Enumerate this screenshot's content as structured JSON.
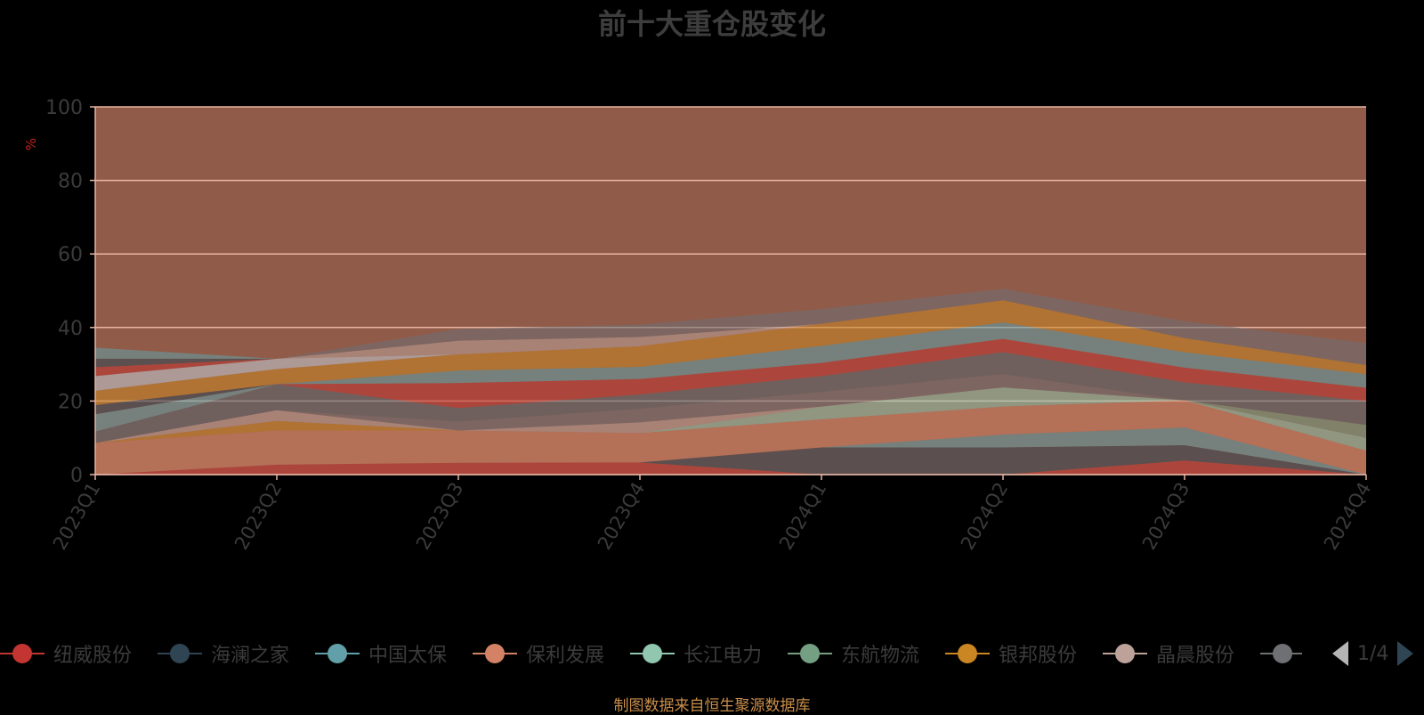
{
  "title": "前十大重仓股变化",
  "source_note": "制图数据来自恒生聚源数据库",
  "pager": {
    "text": "1/4"
  },
  "colors": {
    "plot_bg": "#905b49",
    "grid": "#e9b7a3",
    "axis": "#e6b6a4"
  },
  "chart_data": {
    "type": "area",
    "stacked": true,
    "title": "前十大重仓股变化",
    "ylabel": "%",
    "ylim": [
      0,
      100
    ],
    "yticks": [
      0,
      20,
      40,
      60,
      80,
      100
    ],
    "categories": [
      "2023Q1",
      "2023Q2",
      "2023Q3",
      "2023Q4",
      "2024Q1",
      "2024Q2",
      "2024Q3",
      "2024Q4"
    ],
    "grid": true,
    "legend_position": "bottom",
    "series": [
      {
        "name": "纽威股份",
        "color": "#c23531",
        "values": [
          0,
          2.7,
          3.2,
          3.3,
          0,
          0,
          3.8,
          0
        ]
      },
      {
        "name": "海澜之家",
        "color": "#2f4554",
        "values": [
          0,
          0,
          0,
          0,
          7.4,
          7.4,
          4.2,
          0
        ]
      },
      {
        "name": "中国太保",
        "color": "#61a0a8",
        "values": [
          0,
          0,
          0,
          0,
          0,
          3.5,
          4.8,
          0
        ]
      },
      {
        "name": "保利发展",
        "color": "#d48265",
        "values": [
          8.6,
          9.3,
          8.8,
          8.0,
          7.6,
          7.6,
          7.4,
          6.5
        ]
      },
      {
        "name": "长江电力",
        "color": "#91c7ae",
        "values": [
          0,
          0,
          0,
          0,
          3.5,
          5.2,
          0,
          3.5
        ]
      },
      {
        "name": "东航物流",
        "color": "#749f83",
        "values": [
          0,
          0,
          0,
          0,
          0,
          0,
          0,
          3.5
        ]
      },
      {
        "name": "银邦股份",
        "color": "#ca8622",
        "values": [
          0,
          2.6,
          0,
          0,
          0,
          0,
          0,
          0
        ]
      },
      {
        "name": "晶晨股份",
        "color": "#bda29a",
        "values": [
          0,
          2.9,
          0,
          2.9,
          0,
          0,
          0,
          0
        ]
      },
      {
        "name": "",
        "color": "#6e7074",
        "values": [
          0,
          0,
          2.4,
          3.7,
          4.0,
          3.6,
          0,
          0
        ]
      },
      {
        "name": "",
        "color": "#546570",
        "values": [
          3.1,
          7.1,
          3.7,
          3.9,
          4.3,
          6.0,
          4.9,
          6.5
        ]
      },
      {
        "name": "",
        "color": "#c4ccd3",
        "values": [
          0,
          0,
          0,
          0,
          0,
          0,
          0,
          0
        ]
      },
      {
        "name": "",
        "color": "#c23531",
        "values": [
          0,
          0,
          6.8,
          4.2,
          3.6,
          3.6,
          4.0,
          3.6
        ]
      },
      {
        "name": "",
        "color": "#61a0a8",
        "values": [
          4.7,
          0,
          3.4,
          3.3,
          4.6,
          4.5,
          4.2,
          3.7
        ]
      },
      {
        "name": "",
        "color": "#2f4554",
        "values": [
          2.5,
          0,
          0,
          0,
          0,
          0,
          0,
          0
        ]
      },
      {
        "name": "",
        "color": "#ca8622",
        "values": [
          3.9,
          4.1,
          4.4,
          5.6,
          6.0,
          6.0,
          3.8,
          2.5
        ]
      },
      {
        "name": "",
        "color": "#c4ccd3",
        "values": [
          4.0,
          2.8,
          0,
          0,
          0,
          0,
          0,
          0
        ]
      },
      {
        "name": "",
        "color": "#c23531",
        "values": [
          2.4,
          0,
          0,
          0,
          0,
          0,
          0,
          0
        ]
      },
      {
        "name": "",
        "color": "#2f4554",
        "values": [
          2.3,
          0,
          0,
          0,
          0,
          0,
          0,
          0
        ]
      },
      {
        "name": "",
        "color": "#61a0a8",
        "values": [
          3.0,
          0,
          0,
          0,
          0,
          0,
          0,
          0
        ]
      },
      {
        "name": "",
        "color": "#bda29a",
        "values": [
          0,
          0,
          3.7,
          2.5,
          0,
          0,
          0,
          0
        ]
      },
      {
        "name": "",
        "color": "#6e7074",
        "values": [
          0,
          0,
          3.2,
          3.4,
          4.0,
          3.1,
          4.6,
          6.0
        ]
      }
    ],
    "legend": [
      {
        "name": "纽威股份",
        "color": "#c23531"
      },
      {
        "name": "海澜之家",
        "color": "#2f4554"
      },
      {
        "name": "中国太保",
        "color": "#61a0a8"
      },
      {
        "name": "保利发展",
        "color": "#d48265"
      },
      {
        "name": "长江电力",
        "color": "#91c7ae"
      },
      {
        "name": "东航物流",
        "color": "#749f83"
      },
      {
        "name": "银邦股份",
        "color": "#ca8622"
      },
      {
        "name": "晶晨股份",
        "color": "#bda29a"
      },
      {
        "name": "",
        "color": "#6e7074"
      }
    ]
  }
}
